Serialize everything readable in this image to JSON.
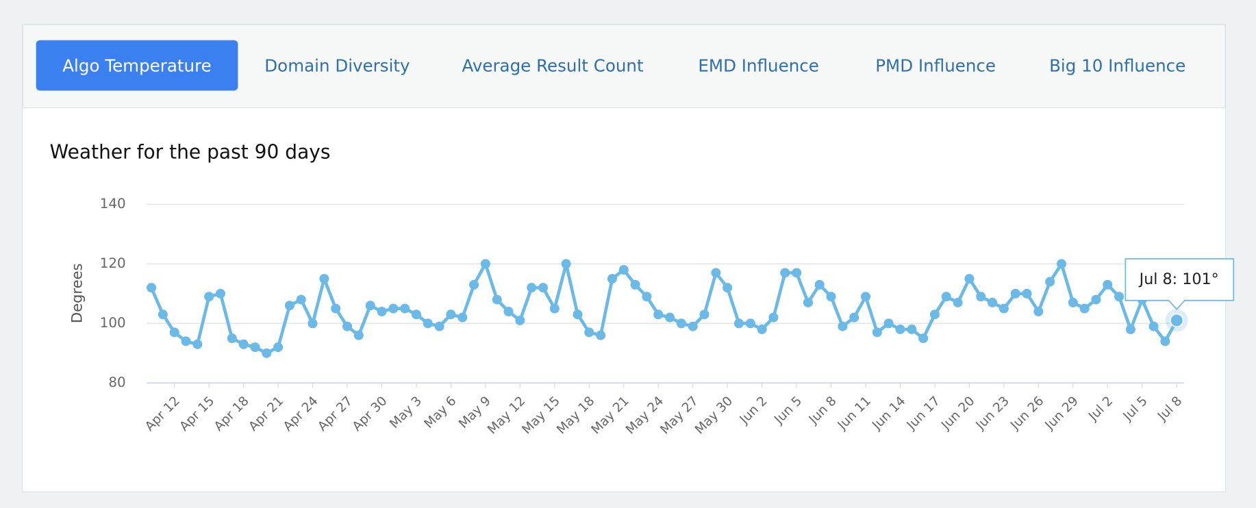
{
  "tabs": [
    "Algo Temperature",
    "Domain Diversity",
    "Average Result Count",
    "EMD Influence",
    "PMD Influence",
    "Big 10 Influence"
  ],
  "active_tab": 0,
  "chart_data": {
    "type": "line",
    "title": "Weather for the past 90 days",
    "y_label": "Degrees",
    "categories": [
      null,
      null,
      "Apr 12",
      null,
      null,
      "Apr 15",
      null,
      null,
      "Apr 18",
      null,
      null,
      "Apr 21",
      null,
      null,
      "Apr 24",
      null,
      null,
      "Apr 27",
      null,
      null,
      "Apr 30",
      null,
      null,
      "May 3",
      null,
      null,
      "May 6",
      null,
      null,
      "May 9",
      null,
      null,
      "May 12",
      null,
      null,
      "May 15",
      null,
      null,
      "May 18",
      null,
      null,
      "May 21",
      null,
      null,
      "May 24",
      null,
      null,
      "May 27",
      null,
      null,
      "May 30",
      null,
      null,
      "Jun 2",
      null,
      null,
      "Jun 5",
      null,
      null,
      "Jun 8",
      null,
      null,
      "Jun 11",
      null,
      null,
      "Jun 14",
      null,
      null,
      "Jun 17",
      null,
      null,
      "Jun 20",
      null,
      null,
      "Jun 23",
      null,
      null,
      "Jun 26",
      null,
      null,
      "Jun 29",
      null,
      null,
      "Jul 2",
      null,
      null,
      "Jul 5",
      null,
      null,
      "Jul 8"
    ],
    "values": [
      112,
      103,
      97,
      94,
      93,
      109,
      110,
      95,
      93,
      92,
      90,
      92,
      106,
      108,
      100,
      115,
      105,
      99,
      96,
      106,
      104,
      105,
      105,
      103,
      100,
      99,
      103,
      102,
      113,
      120,
      108,
      104,
      101,
      112,
      112,
      105,
      120,
      103,
      97,
      96,
      115,
      118,
      113,
      109,
      103,
      102,
      100,
      99,
      103,
      117,
      112,
      100,
      100,
      98,
      102,
      117,
      117,
      107,
      113,
      109,
      99,
      102,
      109,
      97,
      100,
      98,
      98,
      95,
      103,
      109,
      107,
      115,
      109,
      107,
      105,
      110,
      110,
      104,
      114,
      120,
      107,
      105,
      108,
      113,
      109,
      98,
      108,
      99,
      94,
      101
    ],
    "color": "#6bb9e6",
    "ylim": [
      80,
      140
    ],
    "yticks": [
      80,
      100,
      120,
      140
    ],
    "grid": true,
    "tooltip": {
      "index": 89,
      "label": "Jul 8: 101°"
    }
  }
}
